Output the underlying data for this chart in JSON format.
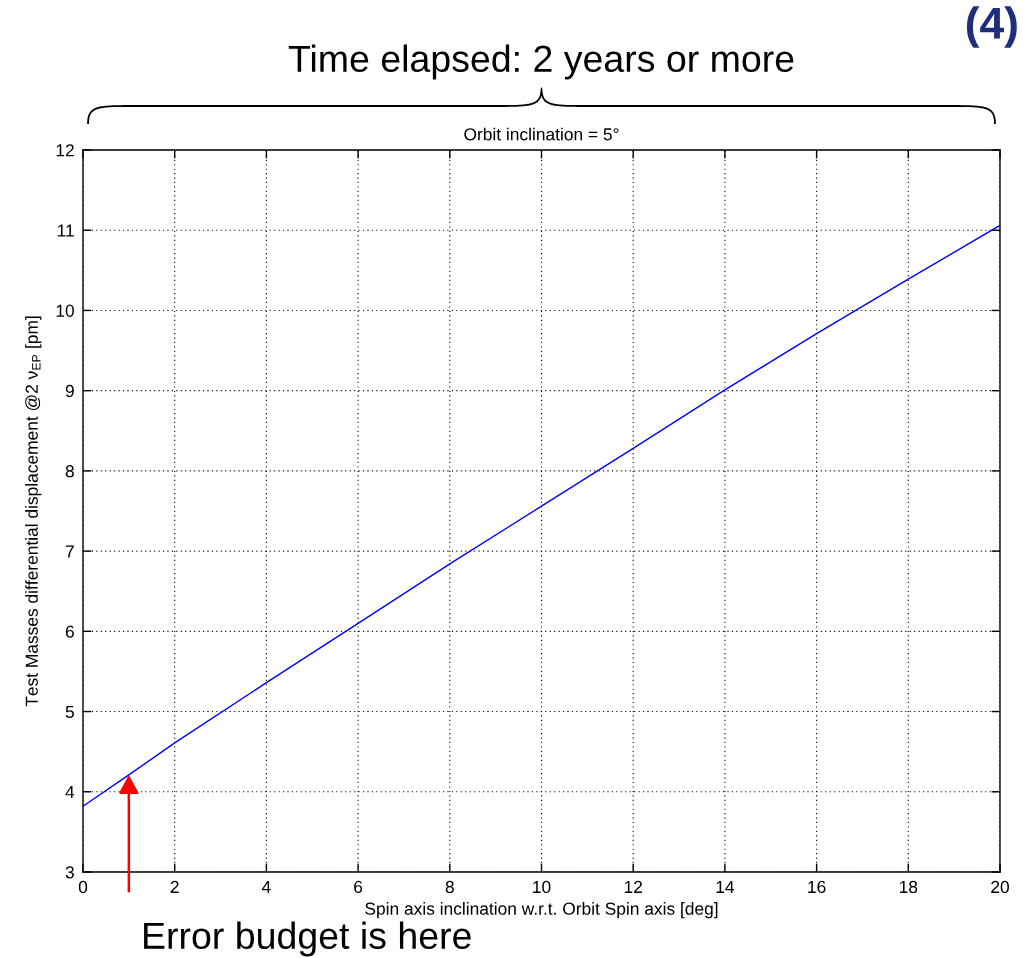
{
  "chart_data": {
    "type": "line",
    "title": "Orbit inclination = 5°",
    "xlabel": "Spin axis inclination w.r.t. Orbit Spin axis [deg]",
    "ylabel": "Test Masses differential displacement @2 ν$_{EP}$ [pm]",
    "x": [
      0,
      1,
      2,
      4,
      6,
      8,
      10,
      12,
      14,
      16,
      18,
      20
    ],
    "series": [
      {
        "color": "#0000ff",
        "values": [
          3.82,
          4.21,
          4.61,
          5.36,
          6.1,
          6.84,
          7.56,
          8.28,
          9.01,
          9.71,
          10.39,
          11.06
        ]
      }
    ],
    "xlim": [
      0,
      20
    ],
    "ylim": [
      3,
      12
    ],
    "xticks": [
      0,
      2,
      4,
      6,
      8,
      10,
      12,
      14,
      16,
      18,
      20
    ],
    "yticks": [
      3,
      4,
      5,
      6,
      7,
      8,
      9,
      10,
      11,
      12
    ],
    "grid": true,
    "line_style": "solid",
    "annotations": [
      "Time elapsed: 2 years or more",
      "(4)",
      {
        "text": "Error budget is here",
        "x": 1,
        "y": 4.21
      }
    ]
  }
}
